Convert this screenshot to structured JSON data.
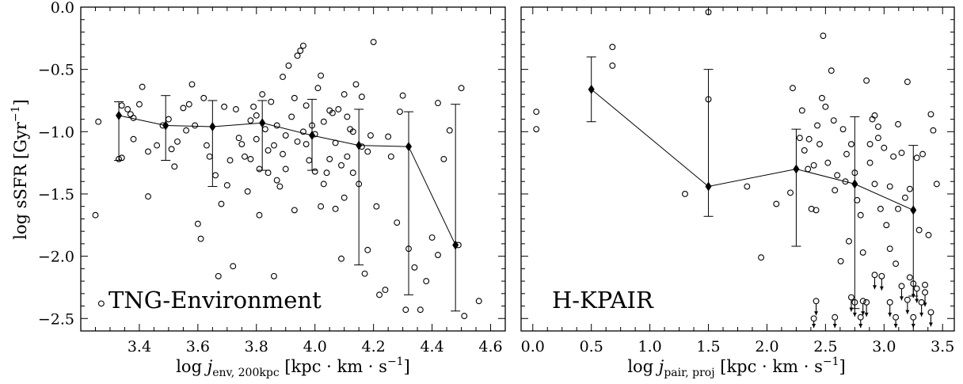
{
  "chart_data": [
    {
      "type": "scatter",
      "annotation": "TNG-Environment",
      "ylabel_main": "log sSFR [Gyr",
      "ylabel_sup": "−1",
      "ylabel_close": "]",
      "xlabel_main": "log ",
      "xlabel_var": "j",
      "xlabel_sub": "env, 200kpc",
      "xlabel_units": " [kpc · km · s",
      "xlabel_sup": "−1",
      "xlabel_close": "]",
      "xlim": [
        3.2,
        4.65
      ],
      "ylim": [
        -2.6,
        0.0
      ],
      "xticks": [
        "3.4",
        "3.6",
        "3.8",
        "4.0",
        "4.2",
        "4.4",
        "4.6"
      ],
      "yticks": [
        "0.0",
        "−0.5",
        "−1.0",
        "−1.5",
        "−2.0",
        "−2.5"
      ],
      "binned_series": {
        "x": [
          3.33,
          3.49,
          3.65,
          3.82,
          3.99,
          4.15,
          4.32,
          4.48
        ],
        "y": [
          -0.87,
          -0.95,
          -0.96,
          -0.93,
          -1.03,
          -1.11,
          -1.12,
          -1.91
        ],
        "err_low": [
          -1.23,
          -1.23,
          -1.44,
          -1.31,
          -1.31,
          -2.07,
          -2.31,
          -2.44
        ],
        "err_high": [
          -0.76,
          -0.71,
          -0.75,
          -0.75,
          -0.74,
          -0.82,
          -0.84,
          -0.78
        ]
      },
      "scatter_points": [
        [
          3.25,
          -1.67
        ],
        [
          3.26,
          -0.92
        ],
        [
          3.27,
          -2.38
        ],
        [
          3.33,
          -1.22
        ],
        [
          3.34,
          -1.21
        ],
        [
          3.34,
          -0.79
        ],
        [
          3.36,
          -0.82
        ],
        [
          3.37,
          -0.86
        ],
        [
          3.38,
          -0.89
        ],
        [
          3.38,
          -1.06
        ],
        [
          3.4,
          -0.78
        ],
        [
          3.41,
          -0.64
        ],
        [
          3.43,
          -1.16
        ],
        [
          3.43,
          -1.52
        ],
        [
          3.46,
          -1.11
        ],
        [
          3.48,
          -0.95
        ],
        [
          3.5,
          -0.9
        ],
        [
          3.51,
          -1.14
        ],
        [
          3.52,
          -1.28
        ],
        [
          3.55,
          -0.81
        ],
        [
          3.57,
          -0.78
        ],
        [
          3.58,
          -0.62
        ],
        [
          3.59,
          -0.95
        ],
        [
          3.6,
          -1.74
        ],
        [
          3.61,
          -1.86
        ],
        [
          3.62,
          -0.73
        ],
        [
          3.63,
          -1.11
        ],
        [
          3.64,
          -1.2
        ],
        [
          3.66,
          -1.35
        ],
        [
          3.67,
          -2.16
        ],
        [
          3.68,
          -1.58
        ],
        [
          3.7,
          -1.43
        ],
        [
          3.71,
          -1.23
        ],
        [
          3.72,
          -2.08
        ],
        [
          3.73,
          -0.82
        ],
        [
          3.75,
          -1.1
        ],
        [
          3.76,
          -1.2
        ],
        [
          3.77,
          -1.48
        ],
        [
          3.78,
          -0.91
        ],
        [
          3.78,
          -1.22
        ],
        [
          3.79,
          -0.8
        ],
        [
          3.8,
          -1.06
        ],
        [
          3.81,
          -1.3
        ],
        [
          3.81,
          -1.67
        ],
        [
          3.82,
          -0.7
        ],
        [
          3.83,
          -0.98
        ],
        [
          3.84,
          -1.33
        ],
        [
          3.85,
          -0.76
        ],
        [
          3.86,
          -2.16
        ],
        [
          3.86,
          -1.11
        ],
        [
          3.87,
          -0.95
        ],
        [
          3.88,
          -1.44
        ],
        [
          3.89,
          -0.56
        ],
        [
          3.89,
          -1.18
        ],
        [
          3.9,
          -1.03
        ],
        [
          3.91,
          -0.47
        ],
        [
          3.92,
          -0.88
        ],
        [
          3.93,
          -1.63
        ],
        [
          3.93,
          -0.73
        ],
        [
          3.94,
          -0.39
        ],
        [
          3.95,
          -0.35
        ],
        [
          3.96,
          -0.31
        ],
        [
          3.96,
          -1.0
        ],
        [
          3.97,
          -0.79
        ],
        [
          3.98,
          -1.23
        ],
        [
          3.99,
          -0.95
        ],
        [
          4.0,
          -1.32
        ],
        [
          4.01,
          -0.65
        ],
        [
          4.02,
          -0.55
        ],
        [
          4.02,
          -1.6
        ],
        [
          4.03,
          -0.92
        ],
        [
          4.04,
          -1.33
        ],
        [
          4.05,
          -1.22
        ],
        [
          4.06,
          -0.85
        ],
        [
          4.07,
          -1.09
        ],
        [
          4.08,
          -0.82
        ],
        [
          4.09,
          -2.02
        ],
        [
          4.1,
          -0.7
        ],
        [
          4.1,
          -1.53
        ],
        [
          4.11,
          -1.2
        ],
        [
          4.12,
          -0.98
        ],
        [
          4.13,
          -1.0
        ],
        [
          4.14,
          -0.62
        ],
        [
          4.15,
          -1.42
        ],
        [
          4.16,
          -0.72
        ],
        [
          4.16,
          -1.12
        ],
        [
          4.17,
          -2.14
        ],
        [
          4.18,
          -1.95
        ],
        [
          4.19,
          -1.03
        ],
        [
          4.2,
          -0.28
        ],
        [
          4.21,
          -1.6
        ],
        [
          4.22,
          -2.31
        ],
        [
          4.24,
          -2.27
        ],
        [
          4.26,
          -1.2
        ],
        [
          4.28,
          -1.73
        ],
        [
          4.3,
          -0.71
        ],
        [
          4.31,
          -2.43
        ],
        [
          4.32,
          -1.94
        ],
        [
          4.34,
          -2.09
        ],
        [
          4.36,
          -2.43
        ],
        [
          4.38,
          -2.2
        ],
        [
          4.4,
          -1.85
        ],
        [
          4.42,
          -0.77
        ],
        [
          4.42,
          -1.99
        ],
        [
          4.44,
          -1.22
        ],
        [
          4.46,
          -0.99
        ],
        [
          4.49,
          -1.91
        ],
        [
          4.5,
          -0.65
        ],
        [
          4.51,
          -2.48
        ],
        [
          4.56,
          -2.36
        ],
        [
          3.53,
          -1.08
        ],
        [
          3.56,
          -0.99
        ],
        [
          3.69,
          -0.8
        ],
        [
          3.74,
          -1.05
        ],
        [
          3.8,
          -0.87
        ],
        [
          3.84,
          -1.15
        ],
        [
          3.87,
          -1.39
        ],
        [
          3.9,
          -1.3
        ],
        [
          3.94,
          -1.08
        ],
        [
          3.97,
          -1.1
        ],
        [
          4.0,
          -1.02
        ],
        [
          4.03,
          -1.42
        ],
        [
          4.05,
          -0.83
        ],
        [
          4.07,
          -1.62
        ],
        [
          4.09,
          -1.27
        ],
        [
          4.11,
          -0.88
        ],
        [
          4.13,
          -1.33
        ],
        [
          4.18,
          -1.16
        ],
        [
          4.25,
          -1.04
        ],
        [
          4.29,
          -0.84
        ]
      ]
    },
    {
      "type": "scatter",
      "annotation": "H-KPAIR",
      "xlabel_main": "log ",
      "xlabel_var": "j",
      "xlabel_sub": "pair, proj",
      "xlabel_units": " [kpc · km · s",
      "xlabel_sup": "−1",
      "xlabel_close": "]",
      "xlim": [
        -0.1,
        3.6
      ],
      "ylim": [
        -2.6,
        0.0
      ],
      "xticks": [
        "0.0",
        "0.5",
        "1.0",
        "1.5",
        "2.0",
        "2.5",
        "3.0",
        "3.5"
      ],
      "binned_series": {
        "x": [
          0.5,
          1.5,
          2.25,
          2.75,
          3.25
        ],
        "y": [
          -0.66,
          -1.44,
          -1.3,
          -1.42,
          -1.63
        ],
        "err_low": [
          -0.92,
          -1.68,
          -1.92,
          -2.42,
          -2.32
        ],
        "err_high": [
          -0.4,
          -0.5,
          -0.98,
          -0.88,
          -1.11
        ]
      },
      "scatter_points": [
        [
          0.03,
          -0.84
        ],
        [
          0.03,
          -0.98
        ],
        [
          0.68,
          -0.32
        ],
        [
          0.68,
          -0.47
        ],
        [
          1.3,
          -1.5
        ],
        [
          1.5,
          -0.74
        ],
        [
          1.5,
          -0.04
        ],
        [
          1.83,
          -1.44
        ],
        [
          1.95,
          -2.01
        ],
        [
          2.08,
          -1.58
        ],
        [
          2.2,
          -1.49
        ],
        [
          2.22,
          -0.65
        ],
        [
          2.28,
          -1.05
        ],
        [
          2.3,
          -0.83
        ],
        [
          2.32,
          -1.15
        ],
        [
          2.35,
          -1.3
        ],
        [
          2.38,
          -1.62
        ],
        [
          2.4,
          -1.27
        ],
        [
          2.43,
          -0.95
        ],
        [
          2.45,
          -1.1
        ],
        [
          2.48,
          -0.23
        ],
        [
          2.5,
          -0.8
        ],
        [
          2.52,
          -1.25
        ],
        [
          2.55,
          -0.51
        ],
        [
          2.57,
          -0.91
        ],
        [
          2.6,
          -1.35
        ],
        [
          2.63,
          -2.04
        ],
        [
          2.65,
          -0.98
        ],
        [
          2.68,
          -1.18
        ],
        [
          2.7,
          -1.88
        ],
        [
          2.72,
          -1.1
        ],
        [
          2.75,
          -1.33
        ],
        [
          2.77,
          -1.55
        ],
        [
          2.8,
          -1.67
        ],
        [
          2.82,
          -1.97
        ],
        [
          2.85,
          -0.59
        ],
        [
          2.88,
          -1.25
        ],
        [
          2.9,
          -0.9
        ],
        [
          2.92,
          -1.42
        ],
        [
          2.95,
          -1.05
        ],
        [
          2.97,
          -1.62
        ],
        [
          3.0,
          -1.13
        ],
        [
          3.02,
          -1.75
        ],
        [
          3.05,
          -1.94
        ],
        [
          3.08,
          -1.2
        ],
        [
          3.1,
          -2.06
        ],
        [
          3.12,
          -1.62
        ],
        [
          3.15,
          -1.17
        ],
        [
          3.18,
          -1.53
        ],
        [
          3.2,
          -0.6
        ],
        [
          3.22,
          -2.17
        ],
        [
          3.28,
          -1.21
        ],
        [
          3.3,
          -1.79
        ],
        [
          3.35,
          -2.23
        ],
        [
          3.38,
          -1.83
        ],
        [
          3.42,
          -0.99
        ],
        [
          3.45,
          -1.42
        ],
        [
          2.42,
          -1.63
        ],
        [
          2.58,
          -1.47
        ],
        [
          2.88,
          -1.1
        ],
        [
          2.95,
          -0.96
        ],
        [
          3.05,
          -1.44
        ],
        [
          3.12,
          -0.94
        ],
        [
          3.22,
          -1.46
        ],
        [
          3.33,
          -1.18
        ],
        [
          3.4,
          -0.86
        ],
        [
          2.47,
          -0.73
        ],
        [
          2.36,
          -1.06
        ],
        [
          2.67,
          -1.4
        ],
        [
          2.92,
          -0.87
        ]
      ],
      "upper_limits": [
        [
          2.42,
          -2.36
        ],
        [
          2.4,
          -2.5
        ],
        [
          2.58,
          -2.49
        ],
        [
          2.72,
          -2.33
        ],
        [
          2.75,
          -2.37
        ],
        [
          2.8,
          -2.49
        ],
        [
          2.82,
          -2.36
        ],
        [
          2.85,
          -2.37
        ],
        [
          2.92,
          -2.15
        ],
        [
          2.98,
          -2.16
        ],
        [
          3.05,
          -2.37
        ],
        [
          3.1,
          -2.49
        ],
        [
          3.15,
          -2.24
        ],
        [
          3.2,
          -2.35
        ],
        [
          3.25,
          -2.22
        ],
        [
          3.28,
          -2.26
        ],
        [
          3.32,
          -2.37
        ],
        [
          3.35,
          -2.29
        ],
        [
          3.4,
          -2.45
        ],
        [
          3.25,
          -2.49
        ]
      ]
    }
  ]
}
